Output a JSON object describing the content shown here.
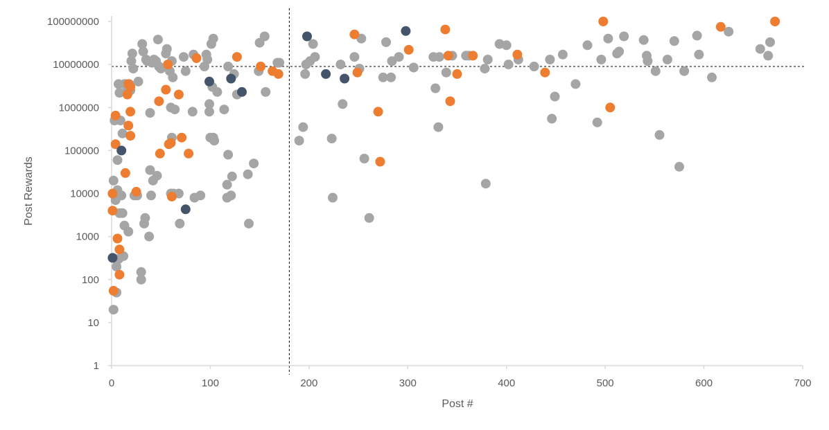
{
  "chart_data": {
    "type": "scatter",
    "title": "",
    "xlabel": "Post #",
    "ylabel": "Post Rewards",
    "x_range": [
      0,
      700
    ],
    "y_range": [
      1,
      100000000
    ],
    "y_scale": "log",
    "grid": false,
    "legend": "none",
    "x_ticks": [
      "0",
      "100",
      "200",
      "300",
      "400",
      "500",
      "600",
      "700"
    ],
    "y_ticks": [
      "1",
      "10",
      "100",
      "1000",
      "10000",
      "100000",
      "1000000",
      "10000000",
      "100000000"
    ],
    "reference_lines": {
      "vertical_x": 180,
      "horizontal_y": 9000000
    },
    "colors": {
      "grey": "#a5a5a5",
      "orange": "#ed7d31",
      "navy": "#44546a",
      "axis": "#d9d9d9",
      "ref_line": "#000000"
    },
    "series": [
      {
        "color_key": "grey",
        "points": [
          [
            2,
            20
          ],
          [
            2,
            20000
          ],
          [
            3,
            500000
          ],
          [
            4,
            600000
          ],
          [
            4,
            7000
          ],
          [
            5,
            200
          ],
          [
            5,
            50
          ],
          [
            5,
            300
          ],
          [
            6,
            12000
          ],
          [
            6,
            60000
          ],
          [
            7,
            3500000
          ],
          [
            7,
            300
          ],
          [
            8,
            3500
          ],
          [
            8,
            2200000
          ],
          [
            9,
            500000
          ],
          [
            10,
            9000
          ],
          [
            11,
            3500
          ],
          [
            11,
            250000
          ],
          [
            12,
            350
          ],
          [
            13,
            1800
          ],
          [
            13,
            3500000
          ],
          [
            14,
            3500000
          ],
          [
            16,
            2500000
          ],
          [
            17,
            1300
          ],
          [
            18,
            3500000
          ],
          [
            19,
            2500000
          ],
          [
            20,
            12000000
          ],
          [
            21,
            18000000
          ],
          [
            22,
            8000000
          ],
          [
            23,
            9000
          ],
          [
            25,
            9000
          ],
          [
            26,
            9000
          ],
          [
            27,
            4000000
          ],
          [
            30,
            150
          ],
          [
            30,
            100
          ],
          [
            31,
            30000000
          ],
          [
            32,
            20000000
          ],
          [
            33,
            2000
          ],
          [
            34,
            2700
          ],
          [
            35,
            13000000
          ],
          [
            36,
            12000000
          ],
          [
            38,
            1000
          ],
          [
            39,
            750000
          ],
          [
            39,
            35000
          ],
          [
            40,
            9000
          ],
          [
            41,
            11000000
          ],
          [
            42,
            20000
          ],
          [
            43,
            13000000
          ],
          [
            45,
            12000000
          ],
          [
            46,
            26000
          ],
          [
            47,
            38000000
          ],
          [
            48,
            9000000
          ],
          [
            50,
            8000000
          ],
          [
            55,
            18000000
          ],
          [
            56,
            23000000
          ],
          [
            57,
            10000000
          ],
          [
            59,
            7000000
          ],
          [
            60,
            10000
          ],
          [
            60,
            1000000
          ],
          [
            61,
            12000000
          ],
          [
            61,
            200000
          ],
          [
            62,
            5000000
          ],
          [
            63,
            10000
          ],
          [
            64,
            900000
          ],
          [
            68,
            10000
          ],
          [
            69,
            2000
          ],
          [
            73,
            15000000
          ],
          [
            75,
            7000000
          ],
          [
            82,
            800000
          ],
          [
            83,
            17000000
          ],
          [
            84,
            8000
          ],
          [
            90,
            9000
          ],
          [
            94,
            9000000
          ],
          [
            96,
            17000000
          ],
          [
            97,
            13000000
          ],
          [
            99,
            1200000
          ],
          [
            99,
            800000
          ],
          [
            100,
            200000
          ],
          [
            101,
            30000000
          ],
          [
            102,
            3000000
          ],
          [
            103,
            200000
          ],
          [
            103,
            40000000
          ],
          [
            104,
            170000
          ],
          [
            107,
            2300000
          ],
          [
            114,
            900000
          ],
          [
            117,
            16000
          ],
          [
            117,
            8000
          ],
          [
            118,
            80000
          ],
          [
            118,
            9000000
          ],
          [
            121,
            9000
          ],
          [
            122,
            25000
          ],
          [
            124,
            6000000
          ],
          [
            127,
            2000000
          ],
          [
            138,
            28000
          ],
          [
            139,
            2000
          ],
          [
            144,
            50000
          ],
          [
            149,
            7000000
          ],
          [
            150,
            32000000
          ],
          [
            155,
            45000000
          ],
          [
            156,
            2300000
          ],
          [
            168,
            11000000
          ],
          [
            170,
            11000000
          ],
          [
            190,
            170000
          ],
          [
            194,
            350000
          ],
          [
            196,
            6000000
          ],
          [
            197,
            10000000
          ],
          [
            201,
            12000000
          ],
          [
            204,
            30000000
          ],
          [
            206,
            15000000
          ],
          [
            223,
            190000
          ],
          [
            224,
            8000
          ],
          [
            232,
            10000000
          ],
          [
            234,
            1200000
          ],
          [
            246,
            15000000
          ],
          [
            251,
            8000000
          ],
          [
            253,
            40000000
          ],
          [
            256,
            65000
          ],
          [
            261,
            2700
          ],
          [
            275,
            5000000
          ],
          [
            278,
            33000000
          ],
          [
            283,
            5000000
          ],
          [
            284,
            12000000
          ],
          [
            291,
            15000000
          ],
          [
            306,
            8500000
          ],
          [
            326,
            15000000
          ],
          [
            328,
            2800000
          ],
          [
            331,
            350000
          ],
          [
            332,
            15000000
          ],
          [
            339,
            6500000
          ],
          [
            345,
            16000000
          ],
          [
            359,
            16000000
          ],
          [
            362,
            16000000
          ],
          [
            378,
            8000000
          ],
          [
            379,
            17000
          ],
          [
            381,
            13000000
          ],
          [
            393,
            30000000
          ],
          [
            400,
            28000000
          ],
          [
            402,
            10000000
          ],
          [
            412,
            13000000
          ],
          [
            428,
            9000000
          ],
          [
            444,
            13000000
          ],
          [
            446,
            550000
          ],
          [
            449,
            1800000
          ],
          [
            457,
            17000000
          ],
          [
            470,
            3500000
          ],
          [
            482,
            28000000
          ],
          [
            492,
            450000
          ],
          [
            496,
            13000000
          ],
          [
            503,
            40000000
          ],
          [
            512,
            18000000
          ],
          [
            514,
            20000000
          ],
          [
            519,
            45000000
          ],
          [
            539,
            37000000
          ],
          [
            542,
            16000000
          ],
          [
            543,
            12000000
          ],
          [
            551,
            7000000
          ],
          [
            555,
            230000
          ],
          [
            563,
            13000000
          ],
          [
            570,
            35000000
          ],
          [
            575,
            42000
          ],
          [
            580,
            7000000
          ],
          [
            593,
            47000000
          ],
          [
            595,
            17000000
          ],
          [
            608,
            5000000
          ],
          [
            625,
            58000000
          ],
          [
            657,
            23000000
          ],
          [
            665,
            16000000
          ],
          [
            667,
            33000000
          ]
        ]
      },
      {
        "color_key": "orange",
        "points": [
          [
            1,
            10000
          ],
          [
            1,
            4000
          ],
          [
            2,
            55
          ],
          [
            4,
            650000
          ],
          [
            4,
            140000
          ],
          [
            6,
            900
          ],
          [
            8,
            500
          ],
          [
            8,
            130
          ],
          [
            14,
            30000
          ],
          [
            16,
            2000000
          ],
          [
            17,
            380000
          ],
          [
            17,
            3500000
          ],
          [
            19,
            3000000
          ],
          [
            19,
            800000
          ],
          [
            19,
            220000
          ],
          [
            25,
            11000
          ],
          [
            48,
            1400000
          ],
          [
            49,
            85000
          ],
          [
            55,
            2600000
          ],
          [
            57,
            10000000
          ],
          [
            58,
            140000
          ],
          [
            60,
            150000
          ],
          [
            61,
            8500
          ],
          [
            68,
            2000000
          ],
          [
            71,
            200000
          ],
          [
            78,
            85000
          ],
          [
            86,
            14000000
          ],
          [
            127,
            15000000
          ],
          [
            151,
            9000000
          ],
          [
            163,
            7000000
          ],
          [
            169,
            6000000
          ],
          [
            246,
            50000000
          ],
          [
            249,
            6500000
          ],
          [
            270,
            800000
          ],
          [
            272,
            55000
          ],
          [
            301,
            22000000
          ],
          [
            338,
            65000000
          ],
          [
            341,
            16000000
          ],
          [
            343,
            1400000
          ],
          [
            350,
            6000000
          ],
          [
            366,
            16000000
          ],
          [
            411,
            17000000
          ],
          [
            439,
            6500000
          ],
          [
            498,
            100000000
          ],
          [
            505,
            1000000
          ],
          [
            617,
            75000000
          ],
          [
            672,
            100000000
          ]
        ]
      },
      {
        "color_key": "navy",
        "points": [
          [
            1,
            320
          ],
          [
            10,
            100000
          ],
          [
            75,
            4300
          ],
          [
            99,
            4000000
          ],
          [
            121,
            4700000
          ],
          [
            132,
            2300000
          ],
          [
            198,
            45000000
          ],
          [
            217,
            6000000
          ],
          [
            236,
            4700000
          ],
          [
            298,
            60000000
          ]
        ]
      }
    ]
  }
}
